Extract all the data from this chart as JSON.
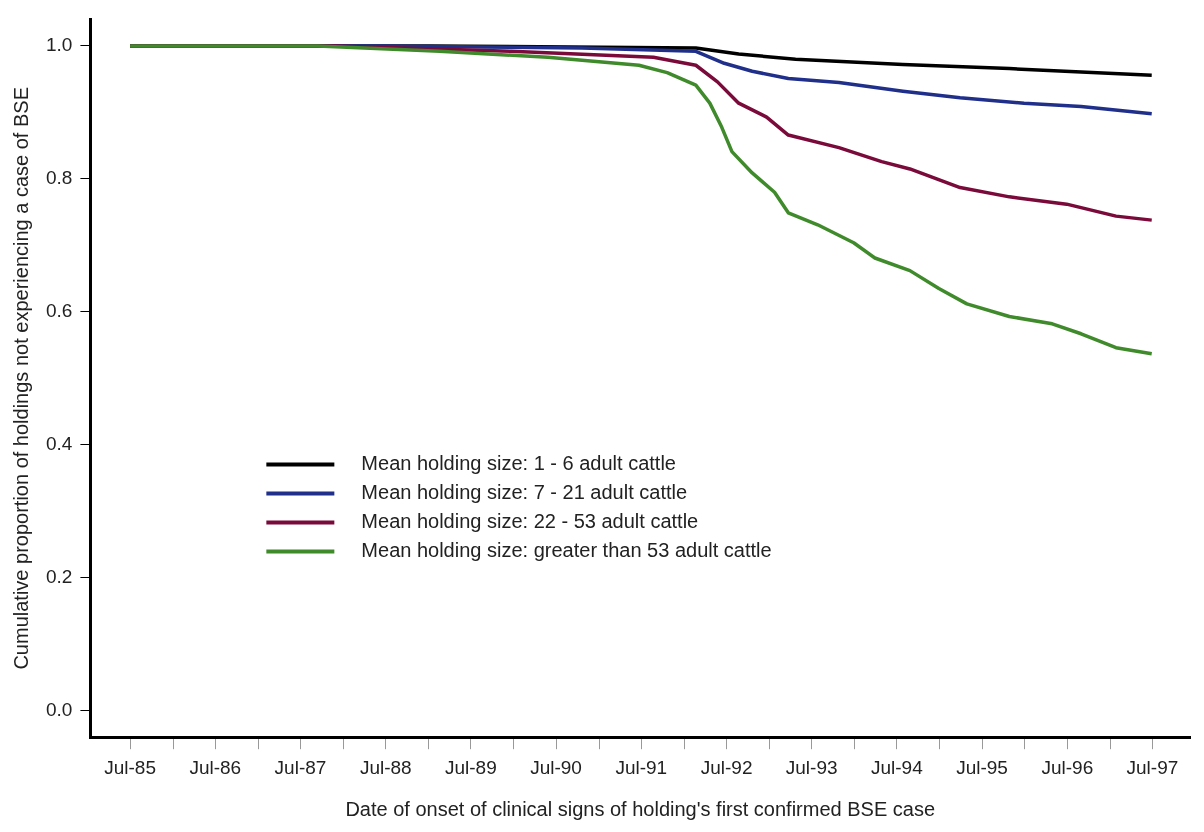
{
  "chart_data": {
    "type": "line",
    "xlabel": "Date of onset of clinical signs of holding's first confirmed BSE case",
    "ylabel": "Cumulative proportion of holdings not experiencing a case of BSE",
    "xlim": [
      "1985-01-12",
      "1997-12-09"
    ],
    "ylim": [
      -0.04,
      1.04
    ],
    "xticks": [
      {
        "value": "1985-07-01",
        "label": "Jul-85"
      },
      {
        "value": "1986-01-01",
        "label": null
      },
      {
        "value": "1986-07-01",
        "label": "Jul-86"
      },
      {
        "value": "1987-01-01",
        "label": null
      },
      {
        "value": "1987-07-01",
        "label": "Jul-87"
      },
      {
        "value": "1988-01-01",
        "label": null
      },
      {
        "value": "1988-07-01",
        "label": "Jul-88"
      },
      {
        "value": "1989-01-01",
        "label": null
      },
      {
        "value": "1989-07-01",
        "label": "Jul-89"
      },
      {
        "value": "1990-01-01",
        "label": null
      },
      {
        "value": "1990-07-01",
        "label": "Jul-90"
      },
      {
        "value": "1991-01-01",
        "label": null
      },
      {
        "value": "1991-07-01",
        "label": "Jul-91"
      },
      {
        "value": "1992-01-01",
        "label": null
      },
      {
        "value": "1992-07-01",
        "label": "Jul-92"
      },
      {
        "value": "1993-01-01",
        "label": null
      },
      {
        "value": "1993-07-01",
        "label": "Jul-93"
      },
      {
        "value": "1994-01-01",
        "label": null
      },
      {
        "value": "1994-07-01",
        "label": "Jul-94"
      },
      {
        "value": "1995-01-01",
        "label": null
      },
      {
        "value": "1995-07-01",
        "label": "Jul-95"
      },
      {
        "value": "1996-01-01",
        "label": null
      },
      {
        "value": "1996-07-01",
        "label": "Jul-96"
      },
      {
        "value": "1997-01-01",
        "label": null
      },
      {
        "value": "1997-07-01",
        "label": "Jul-97"
      }
    ],
    "yticks": [
      {
        "value": 0,
        "label": "0.0"
      },
      {
        "value": 0.2,
        "label": "0.2"
      },
      {
        "value": 0.4,
        "label": "0.4"
      },
      {
        "value": 0.6,
        "label": "0.6"
      },
      {
        "value": 0.8,
        "label": "0.8"
      },
      {
        "value": 1,
        "label": "1.0"
      }
    ],
    "grid": false,
    "legend": "left",
    "marker": "none",
    "line_style": "solid",
    "series": [
      {
        "name": "Mean holding size: 1 - 6 adult cattle",
        "color": "#000000",
        "x": [
          "1985-07-01",
          "1989-01-01",
          "1992-02-20",
          "1992-08-22",
          "1993-04-23",
          "1994-07-27",
          "1995-10-26",
          "1997-06-28"
        ],
        "values": [
          1.0,
          1.0,
          0.997,
          0.988,
          0.98,
          0.972,
          0.966,
          0.956
        ]
      },
      {
        "name": "Mean holding size: 7 - 21 adult cattle",
        "color": "#1f2f8a",
        "x": [
          "1985-07-01",
          "1988-07-01",
          "1990-10-19",
          "1992-02-20",
          "1992-06-21",
          "1992-10-19",
          "1993-03-23",
          "1993-10-26",
          "1994-07-27",
          "1995-03-29",
          "1995-12-28",
          "1996-08-29",
          "1997-06-28"
        ],
        "values": [
          1.0,
          1.0,
          0.997,
          0.992,
          0.974,
          0.962,
          0.951,
          0.945,
          0.932,
          0.922,
          0.914,
          0.909,
          0.898
        ]
      },
      {
        "name": "Mean holding size: 22 - 53 adult cattle",
        "color": "#7a0a3a",
        "x": [
          "1985-07-01",
          "1987-11-24",
          "1989-12-20",
          "1991-08-22",
          "1992-02-20",
          "1992-05-23",
          "1992-08-22",
          "1992-12-20",
          "1993-03-23",
          "1993-10-26",
          "1994-04-27",
          "1994-08-26",
          "1995-03-29",
          "1995-10-26",
          "1996-06-28",
          "1997-01-26",
          "1997-06-28"
        ],
        "values": [
          1.0,
          1.0,
          0.992,
          0.983,
          0.971,
          0.946,
          0.914,
          0.893,
          0.866,
          0.847,
          0.826,
          0.815,
          0.787,
          0.773,
          0.762,
          0.744,
          0.738
        ]
      },
      {
        "name": "Mean holding size: greater than 53 adult cattle",
        "color": "#3f8a2a",
        "x": [
          "1985-07-01",
          "1987-09-13",
          "1989-02-17",
          "1990-05-27",
          "1991-06-21",
          "1991-10-20",
          "1992-02-20",
          "1992-04-20",
          "1992-06-10",
          "1992-07-24",
          "1992-10-19",
          "1993-01-23",
          "1993-03-23",
          "1993-07-27",
          "1993-12-28",
          "1994-03-29",
          "1994-08-26",
          "1994-12-28",
          "1995-04-27",
          "1995-10-26",
          "1996-04-27",
          "1996-08-29",
          "1997-01-26",
          "1997-06-28"
        ],
        "values": [
          1.0,
          1.0,
          0.992,
          0.983,
          0.971,
          0.96,
          0.941,
          0.914,
          0.878,
          0.841,
          0.809,
          0.78,
          0.749,
          0.731,
          0.704,
          0.681,
          0.662,
          0.635,
          0.612,
          0.593,
          0.582,
          0.567,
          0.546,
          0.537
        ]
      }
    ]
  }
}
